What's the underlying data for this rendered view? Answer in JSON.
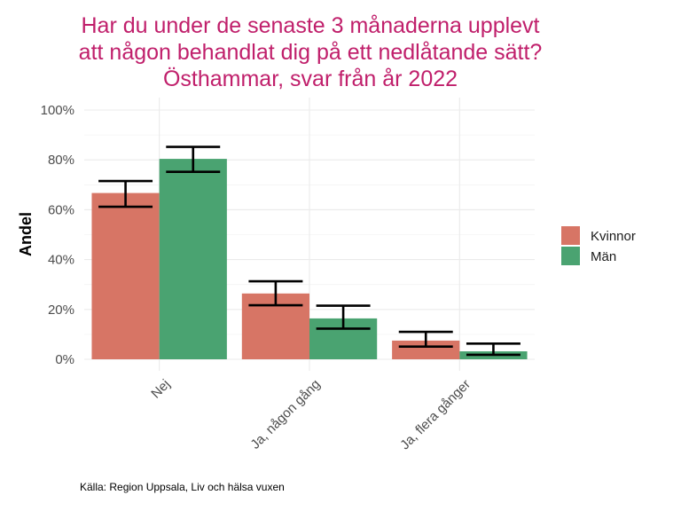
{
  "chart_data": {
    "type": "bar",
    "title": [
      "Har du under de senaste 3 månaderna upplevt",
      "att någon behandlat dig på ett nedlåtande sätt?",
      "Östhammar, svar från år 2022"
    ],
    "xlabel": "",
    "ylabel": "Andel",
    "ylim": [
      0,
      1
    ],
    "yticks": [
      0,
      0.2,
      0.4,
      0.6,
      0.8,
      1.0
    ],
    "ytick_labels": [
      "0%",
      "20%",
      "40%",
      "60%",
      "80%",
      "100%"
    ],
    "categories": [
      "Nej",
      "Ja, någon gång",
      "Ja, flera gånger"
    ],
    "series": [
      {
        "name": "Kvinnor",
        "color": "#d77565",
        "values": [
          0.667,
          0.264,
          0.075
        ],
        "error_low": [
          0.612,
          0.217,
          0.051
        ],
        "error_high": [
          0.715,
          0.313,
          0.11
        ]
      },
      {
        "name": "Män",
        "color": "#4aa371",
        "values": [
          0.804,
          0.164,
          0.032
        ],
        "error_low": [
          0.752,
          0.123,
          0.018
        ],
        "error_high": [
          0.852,
          0.215,
          0.063
        ]
      }
    ],
    "grid": true,
    "legend": {
      "position": "right",
      "entries": [
        "Kvinnor",
        "Män"
      ]
    },
    "caption": "Källa: Region Uppsala, Liv och hälsa vuxen"
  }
}
